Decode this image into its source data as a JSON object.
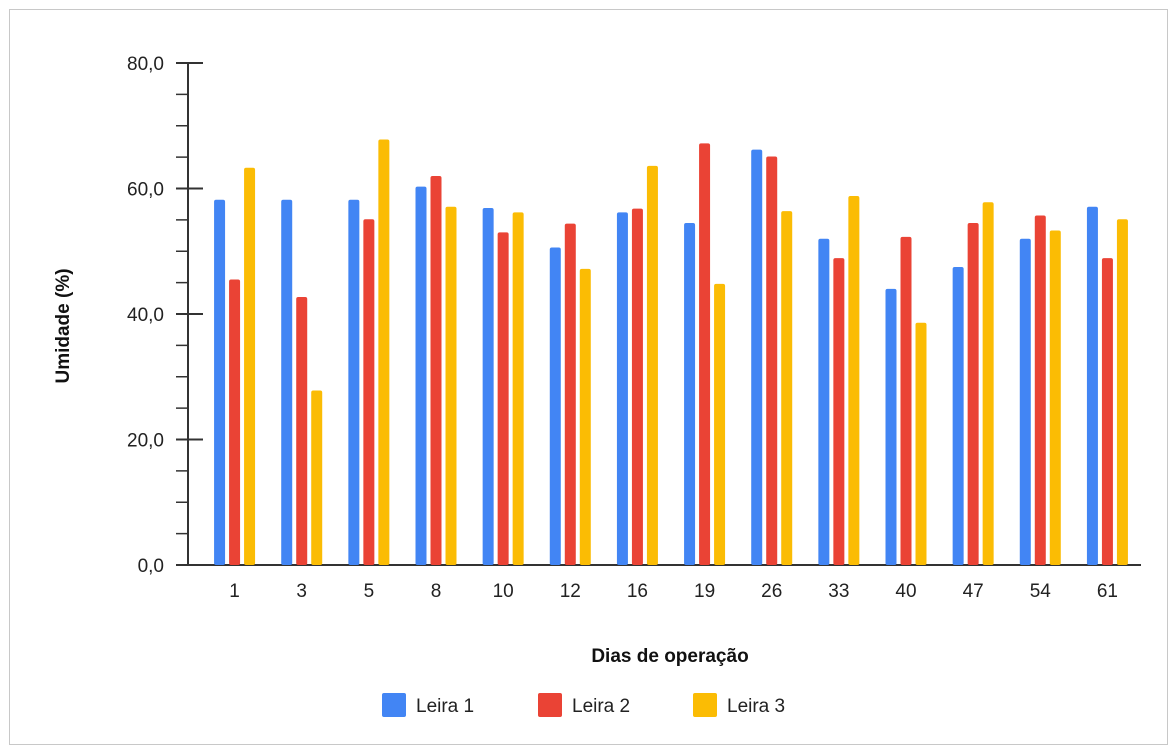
{
  "chart_data": {
    "type": "bar",
    "xlabel": "Dias de operação",
    "ylabel": "Umidade (%)",
    "ylim": [
      0,
      80
    ],
    "yticks": [
      "0,0",
      "20,0",
      "40,0",
      "60,0",
      "80,0"
    ],
    "ytick_values": [
      0,
      20,
      40,
      60,
      80
    ],
    "categories": [
      "1",
      "3",
      "5",
      "8",
      "10",
      "12",
      "16",
      "19",
      "26",
      "33",
      "40",
      "47",
      "54",
      "61"
    ],
    "series": [
      {
        "name": "Leira 1",
        "color": "#4285f4",
        "values": [
          58.2,
          58.2,
          58.2,
          60.3,
          56.9,
          50.6,
          56.2,
          54.5,
          66.2,
          52.0,
          44.0,
          47.5,
          52.0,
          57.1
        ]
      },
      {
        "name": "Leira 2",
        "color": "#ea4335",
        "values": [
          45.5,
          42.7,
          55.1,
          62.0,
          53.0,
          54.4,
          56.8,
          67.2,
          65.1,
          48.9,
          52.3,
          54.5,
          55.7,
          48.9
        ]
      },
      {
        "name": "Leira 3",
        "color": "#fbbc04",
        "values": [
          63.3,
          27.8,
          67.8,
          57.1,
          56.2,
          47.2,
          63.6,
          44.8,
          56.4,
          58.8,
          38.6,
          57.8,
          53.3,
          55.1
        ]
      }
    ],
    "grid": false,
    "legend_position": "bottom"
  }
}
